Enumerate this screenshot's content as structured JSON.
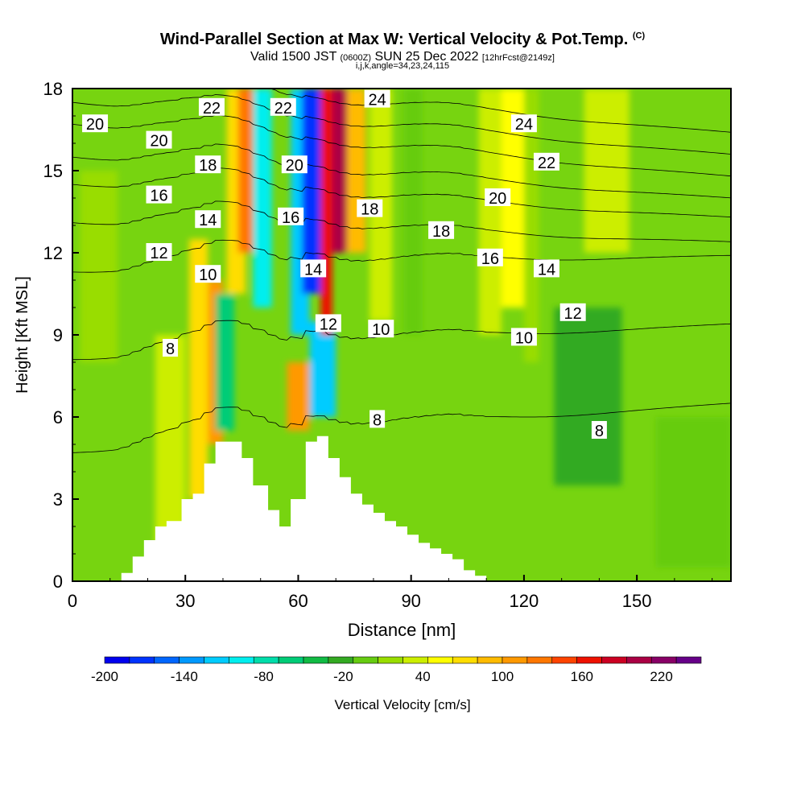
{
  "chart_data": {
    "type": "heatmap",
    "title": "Wind-Parallel Section at Max W: Vertical Velocity & Pot.Temp.",
    "title_tag": "(C)",
    "subtitle": {
      "valid_prefix": "Valid 1500 JST",
      "utc": "(0600Z)",
      "date": "SUN 25 Dec 2022",
      "forecast": "[12hrFcst@2149z]"
    },
    "params_line": "i,j,k,angle=34,23,24,115",
    "xlabel": "Distance [nm]",
    "ylabel": "Height [Kft MSL]",
    "xlim": [
      0,
      175
    ],
    "ylim": [
      0,
      18
    ],
    "x_ticks": [
      0,
      30,
      60,
      90,
      120,
      150
    ],
    "y_ticks": [
      0,
      3,
      6,
      9,
      12,
      15,
      18
    ],
    "colorbar": {
      "label": "Vertical Velocity [cm/s]",
      "min": -200,
      "max": 250,
      "ticks": [
        -200,
        -140,
        -80,
        -20,
        40,
        100,
        160,
        220
      ],
      "colors": [
        "#0000ee",
        "#0033ff",
        "#0066ff",
        "#0099ff",
        "#00ccff",
        "#00eeee",
        "#00ddaa",
        "#00cc77",
        "#11bb44",
        "#33aa22",
        "#66cc11",
        "#99dd00",
        "#ccee00",
        "#ffff00",
        "#ffdd00",
        "#ffbb00",
        "#ff9900",
        "#ff7700",
        "#ff4400",
        "#ee1100",
        "#cc0022",
        "#aa0044",
        "#880066",
        "#660088"
      ]
    },
    "background_color": "#77d410",
    "terrain_color": "#ffffff",
    "terrain": {
      "x": [
        0,
        10,
        13,
        16,
        19,
        22,
        25,
        29,
        32,
        35,
        38,
        42,
        45,
        48,
        52,
        55,
        58,
        62,
        65,
        68,
        71,
        74,
        77,
        80,
        83,
        86,
        89,
        92,
        95,
        98,
        101,
        104,
        107,
        110,
        175
      ],
      "z": [
        0,
        0,
        0.3,
        0.9,
        1.5,
        2.0,
        2.2,
        3.0,
        3.2,
        4.3,
        5.1,
        5.1,
        4.5,
        3.5,
        2.6,
        2.0,
        3.0,
        5.1,
        5.3,
        4.5,
        3.8,
        3.2,
        2.8,
        2.5,
        2.2,
        2.0,
        1.7,
        1.4,
        1.2,
        1.0,
        0.8,
        0.4,
        0.2,
        0,
        0
      ]
    },
    "velocity_bands": [
      {
        "x0": 22,
        "x1": 30,
        "z0": 0.5,
        "z1": 9.0,
        "value": 40
      },
      {
        "x0": 31,
        "x1": 36,
        "z0": 3.0,
        "z1": 12.5,
        "value": 70
      },
      {
        "x0": 36,
        "x1": 40,
        "z0": 5.0,
        "z1": 11.0,
        "value": 100
      },
      {
        "x0": 38,
        "x1": 43,
        "z0": 5.5,
        "z1": 10.5,
        "value": -60
      },
      {
        "x0": 41,
        "x1": 46,
        "z0": 10.5,
        "z1": 18,
        "value": 80
      },
      {
        "x0": 44,
        "x1": 48,
        "z0": 12.0,
        "z1": 18,
        "value": 120
      },
      {
        "x0": 48,
        "x1": 53,
        "z0": 10.0,
        "z1": 18,
        "value": -90
      },
      {
        "x0": 57,
        "x1": 63,
        "z0": 5.5,
        "z1": 8.0,
        "value": 100
      },
      {
        "x0": 63,
        "x1": 70,
        "z0": 6.0,
        "z1": 9.5,
        "value": -120
      },
      {
        "x0": 58,
        "x1": 63,
        "z0": 9.0,
        "z1": 18,
        "value": -110
      },
      {
        "x0": 61,
        "x1": 66,
        "z0": 10.5,
        "z1": 18,
        "value": -180
      },
      {
        "x0": 66,
        "x1": 69,
        "z0": 9.0,
        "z1": 18,
        "value": 160
      },
      {
        "x0": 69,
        "x1": 73,
        "z0": 12.0,
        "z1": 18,
        "value": 200
      },
      {
        "x0": 73,
        "x1": 78,
        "z0": 12.0,
        "z1": 18,
        "value": 90
      },
      {
        "x0": 79,
        "x1": 85,
        "z0": 9.5,
        "z1": 18,
        "value": 40
      },
      {
        "x0": 88,
        "x1": 93,
        "z0": 9.0,
        "z1": 18,
        "value": -10
      },
      {
        "x0": 108,
        "x1": 114,
        "z0": 9.0,
        "z1": 18,
        "value": 40
      },
      {
        "x0": 114,
        "x1": 120,
        "z0": 10.0,
        "z1": 18,
        "value": 50
      },
      {
        "x0": 120,
        "x1": 124,
        "z0": 8.0,
        "z1": 18,
        "value": 20
      },
      {
        "x0": 128,
        "x1": 146,
        "z0": 3.5,
        "z1": 10.0,
        "value": -20
      },
      {
        "x0": 136,
        "x1": 148,
        "z0": 12.0,
        "z1": 18,
        "value": 40
      },
      {
        "x0": 2,
        "x1": 12,
        "z0": 8.0,
        "z1": 15.0,
        "value": 20
      },
      {
        "x0": 155,
        "x1": 175,
        "z0": 0.5,
        "z1": 6.0,
        "value": -10
      }
    ],
    "contours": [
      {
        "level": 8,
        "z_west": 4.8,
        "z_east": 6.5
      },
      {
        "level": 10,
        "z_west": 8.2,
        "z_east": 9.4
      },
      {
        "level": 12,
        "z_west": 11.4,
        "z_east": 11.9
      },
      {
        "level": 14,
        "z_west": 13.2,
        "z_east": 12.4
      },
      {
        "level": 16,
        "z_west": 14.6,
        "z_east": 13.3
      },
      {
        "level": 18,
        "z_west": 15.6,
        "z_east": 14.0
      },
      {
        "level": 20,
        "z_west": 16.8,
        "z_east": 14.8
      },
      {
        "level": 22,
        "z_west": 17.6,
        "z_east": 15.6
      },
      {
        "level": 24,
        "z_west": 18.4,
        "z_east": 16.4
      }
    ],
    "contour_labels": [
      {
        "text": "20",
        "x": 6,
        "z": 16.7
      },
      {
        "text": "20",
        "x": 23,
        "z": 16.1
      },
      {
        "text": "16",
        "x": 23,
        "z": 14.1
      },
      {
        "text": "12",
        "x": 23,
        "z": 12.0
      },
      {
        "text": "8",
        "x": 26,
        "z": 8.5
      },
      {
        "text": "22",
        "x": 37,
        "z": 17.3
      },
      {
        "text": "18",
        "x": 36,
        "z": 15.2
      },
      {
        "text": "14",
        "x": 36,
        "z": 13.2
      },
      {
        "text": "10",
        "x": 36,
        "z": 11.2
      },
      {
        "text": "22",
        "x": 56,
        "z": 17.3
      },
      {
        "text": "20",
        "x": 59,
        "z": 15.2
      },
      {
        "text": "16",
        "x": 58,
        "z": 13.3
      },
      {
        "text": "14",
        "x": 64,
        "z": 11.4
      },
      {
        "text": "12",
        "x": 68,
        "z": 9.4
      },
      {
        "text": "24",
        "x": 81,
        "z": 17.6
      },
      {
        "text": "18",
        "x": 79,
        "z": 13.6
      },
      {
        "text": "10",
        "x": 82,
        "z": 9.2
      },
      {
        "text": "8",
        "x": 81,
        "z": 5.9
      },
      {
        "text": "18",
        "x": 98,
        "z": 12.8
      },
      {
        "text": "20",
        "x": 113,
        "z": 14.0
      },
      {
        "text": "16",
        "x": 111,
        "z": 11.8
      },
      {
        "text": "24",
        "x": 120,
        "z": 16.7
      },
      {
        "text": "22",
        "x": 126,
        "z": 15.3
      },
      {
        "text": "14",
        "x": 126,
        "z": 11.4
      },
      {
        "text": "10",
        "x": 120,
        "z": 8.9
      },
      {
        "text": "12",
        "x": 133,
        "z": 9.8
      },
      {
        "text": "8",
        "x": 140,
        "z": 5.5
      }
    ]
  }
}
